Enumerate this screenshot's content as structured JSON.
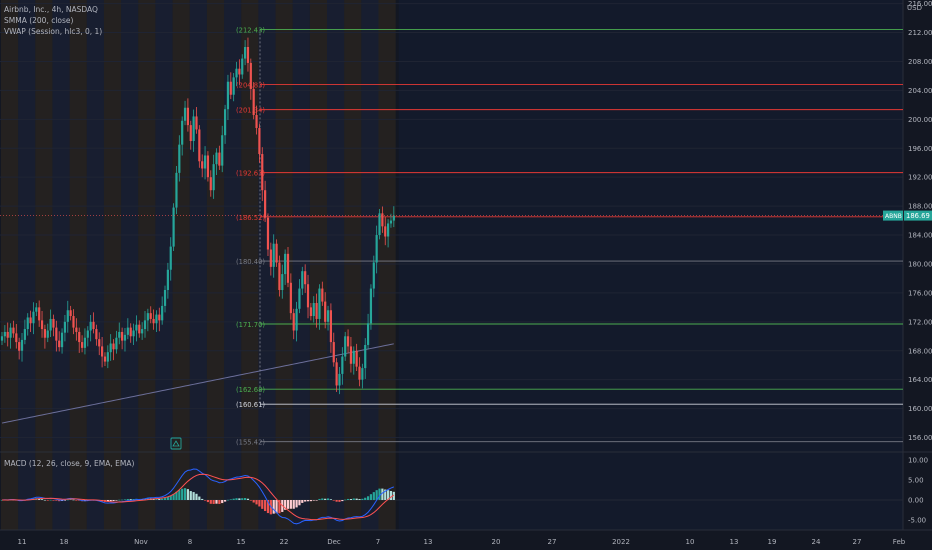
{
  "header": {
    "symbol": "Airbnb, Inc., 4h, NASDAQ",
    "indicator_1": "SMMA (200, close)",
    "indicator_2": "VWAP (Session, hlc3, 0, 1)",
    "macd": "MACD (12, 26, close, 9, EMA, EMA)",
    "currency": "USD"
  },
  "colors": {
    "background": "#131722",
    "up": "#26a69a",
    "down": "#ef5350",
    "smma": "#6c6f9a",
    "macd_line": "#2962ff",
    "signal_line": "#ff5252",
    "fib_green": "#4caf50",
    "fib_red": "#e53935",
    "fib_gray": "#787b86"
  },
  "price_badge": {
    "label": "ABNB",
    "value": "186.69"
  },
  "chart_data": {
    "type": "candlestick",
    "price_axis": {
      "range": [
        154,
        216.5
      ],
      "ticks": [
        "216.00",
        "212.00",
        "208.00",
        "204.00",
        "200.00",
        "196.00",
        "192.00",
        "188.00",
        "184.00",
        "180.00",
        "176.00",
        "172.00",
        "168.00",
        "164.00",
        "160.00",
        "156.00"
      ]
    },
    "macd_axis": {
      "range": [
        -7.5,
        12
      ],
      "ticks": [
        "10.00",
        "5.00",
        "0.00",
        "-5.00"
      ]
    },
    "x_axis": {
      "ticks": [
        "11",
        "18",
        "Nov",
        "8",
        "15",
        "22",
        "Dec",
        "7",
        "13",
        "20",
        "27",
        "2022",
        "10",
        "13",
        "19",
        "24",
        "27",
        "Feb"
      ]
    },
    "levels": [
      {
        "label": "(212.43)",
        "value": 212.43,
        "color": "#4caf50"
      },
      {
        "label": "(204.83)",
        "value": 204.83,
        "color": "#e53935"
      },
      {
        "label": "(201.34)",
        "value": 201.34,
        "color": "#e53935"
      },
      {
        "label": "(192.63)",
        "value": 192.63,
        "color": "#e53935"
      },
      {
        "label": "(186.52)",
        "value": 186.52,
        "color": "#e53935"
      },
      {
        "label": "(180.40)",
        "value": 180.4,
        "color": "#787b86"
      },
      {
        "label": "(171.70)",
        "value": 171.7,
        "color": "#4caf50"
      },
      {
        "label": "(162.68)",
        "value": 162.68,
        "color": "#4caf50"
      },
      {
        "label": "(160.61)",
        "value": 160.61,
        "color": "#d1d4dc"
      },
      {
        "label": "(155.42)",
        "value": 155.42,
        "color": "#787b86"
      }
    ],
    "close": [
      170.0,
      170.6,
      169.8,
      171.2,
      170.4,
      169.2,
      168.0,
      169.5,
      171.0,
      172.6,
      171.8,
      173.4,
      174.0,
      172.2,
      171.0,
      169.8,
      170.8,
      172.4,
      171.2,
      169.4,
      168.5,
      170.5,
      172.0,
      173.6,
      172.8,
      171.2,
      170.6,
      169.2,
      168.4,
      169.8,
      170.8,
      172.0,
      171.0,
      169.6,
      168.6,
      167.2,
      166.5,
      167.8,
      169.0,
      168.2,
      169.8,
      170.6,
      169.4,
      170.2,
      171.2,
      170.0,
      170.8,
      171.6,
      170.4,
      171.0,
      172.2,
      173.2,
      172.4,
      171.8,
      173.0,
      172.2,
      174.2,
      176.4,
      179.2,
      182.4,
      187.8,
      192.6,
      196.5,
      199.8,
      201.6,
      199.2,
      197.0,
      200.4,
      198.6,
      194.2,
      193.2,
      195.0,
      192.0,
      190.2,
      193.8,
      195.4,
      193.6,
      197.8,
      201.4,
      205.2,
      203.4,
      205.8,
      207.0,
      206.2,
      208.4,
      210.0,
      207.8,
      204.2,
      200.6,
      198.8,
      195.2,
      190.2,
      186.4,
      182.0,
      179.6,
      182.8,
      180.2,
      176.4,
      178.6,
      181.4,
      177.4,
      173.2,
      170.8,
      173.8,
      176.6,
      179.0,
      177.2,
      174.0,
      172.8,
      174.6,
      172.4,
      176.6,
      174.8,
      172.0,
      173.6,
      169.2,
      166.4,
      163.2,
      164.8,
      167.2,
      170.0,
      168.6,
      166.2,
      168.0,
      165.8,
      164.0,
      165.6,
      168.8,
      171.8,
      176.6,
      180.2,
      184.0,
      187.0,
      185.2,
      183.8,
      185.6,
      186.0,
      186.69
    ]
  }
}
